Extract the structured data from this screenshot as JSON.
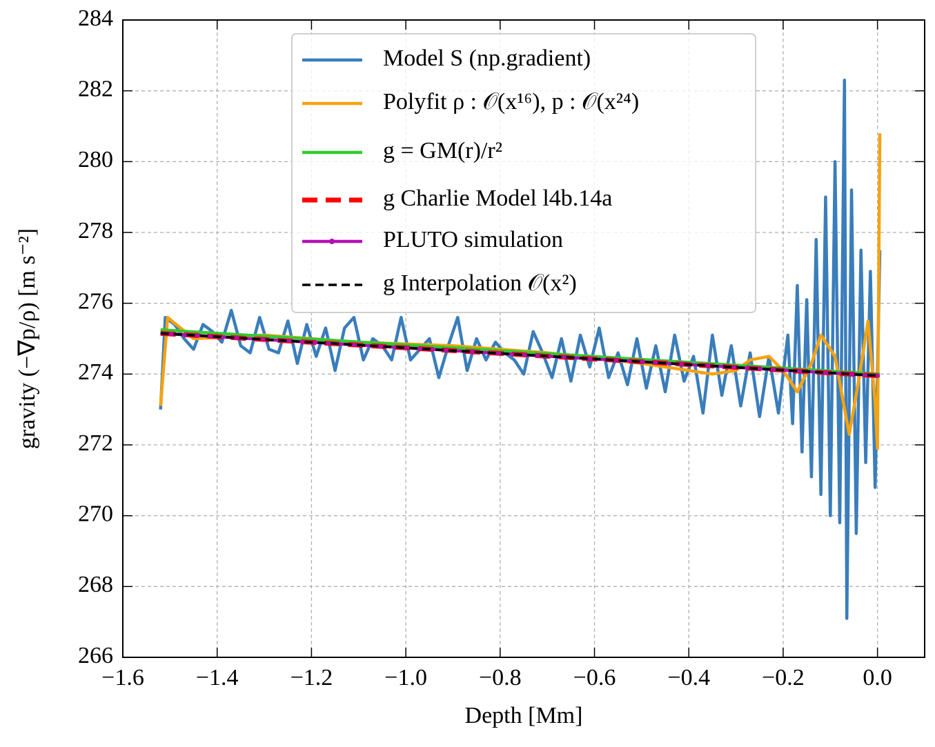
{
  "chart_data": {
    "type": "line",
    "xlabel": "Depth [Mm]",
    "ylabel": "gravity (−∇p/ρ) [m s⁻²]",
    "xlim": [
      -1.6,
      0.1
    ],
    "ylim": [
      266,
      284
    ],
    "xticks": [
      {
        "value": -1.6,
        "label": "−1.6"
      },
      {
        "value": -1.4,
        "label": "−1.4"
      },
      {
        "value": -1.2,
        "label": "−1.2"
      },
      {
        "value": -1.0,
        "label": "−1.0"
      },
      {
        "value": -0.8,
        "label": "−0.8"
      },
      {
        "value": -0.6,
        "label": "−0.6"
      },
      {
        "value": -0.4,
        "label": "−0.4"
      },
      {
        "value": -0.2,
        "label": "−0.2"
      },
      {
        "value": 0.0,
        "label": "0.0"
      }
    ],
    "yticks": [
      266,
      268,
      270,
      272,
      274,
      276,
      278,
      280,
      282,
      284
    ],
    "grid": true,
    "legend": "upper center",
    "series": [
      {
        "name": "Model S (np.gradient)",
        "color": "#3a7dbb",
        "linestyle": "solid",
        "x": [
          -1.52,
          -1.51,
          -1.49,
          -1.47,
          -1.45,
          -1.43,
          -1.41,
          -1.39,
          -1.37,
          -1.35,
          -1.33,
          -1.31,
          -1.29,
          -1.27,
          -1.25,
          -1.23,
          -1.21,
          -1.19,
          -1.17,
          -1.15,
          -1.13,
          -1.11,
          -1.09,
          -1.07,
          -1.05,
          -1.03,
          -1.01,
          -0.99,
          -0.97,
          -0.95,
          -0.93,
          -0.91,
          -0.89,
          -0.87,
          -0.85,
          -0.83,
          -0.81,
          -0.79,
          -0.77,
          -0.75,
          -0.73,
          -0.71,
          -0.69,
          -0.67,
          -0.65,
          -0.63,
          -0.61,
          -0.59,
          -0.57,
          -0.55,
          -0.53,
          -0.51,
          -0.49,
          -0.47,
          -0.45,
          -0.43,
          -0.41,
          -0.39,
          -0.37,
          -0.35,
          -0.33,
          -0.31,
          -0.29,
          -0.27,
          -0.25,
          -0.23,
          -0.21,
          -0.19,
          -0.18,
          -0.17,
          -0.16,
          -0.15,
          -0.14,
          -0.13,
          -0.12,
          -0.11,
          -0.1,
          -0.09,
          -0.08,
          -0.07,
          -0.065,
          -0.055,
          -0.045,
          -0.035,
          -0.025,
          -0.015,
          -0.005,
          0.0,
          0.005
        ],
        "values": [
          273.0,
          275.6,
          275.4,
          275.0,
          274.7,
          275.4,
          275.2,
          274.9,
          275.8,
          274.8,
          274.6,
          275.6,
          274.7,
          274.6,
          275.5,
          274.3,
          275.4,
          274.5,
          275.3,
          274.1,
          275.3,
          275.6,
          274.4,
          275.0,
          274.8,
          274.4,
          275.6,
          274.4,
          274.7,
          275.0,
          273.9,
          274.8,
          275.6,
          274.1,
          275.0,
          274.4,
          274.9,
          274.6,
          274.4,
          274.0,
          275.2,
          274.6,
          273.9,
          275.0,
          273.8,
          275.1,
          274.2,
          275.3,
          273.9,
          274.6,
          273.7,
          275.0,
          273.6,
          274.8,
          273.5,
          275.1,
          273.8,
          274.5,
          272.9,
          275.1,
          273.4,
          274.8,
          273.1,
          274.6,
          272.8,
          274.5,
          272.9,
          275.1,
          272.6,
          276.5,
          271.8,
          276.1,
          271.1,
          277.8,
          270.6,
          279.0,
          270.0,
          280.0,
          269.8,
          282.3,
          267.1,
          279.2,
          269.5,
          277.5,
          271.5,
          276.9,
          270.8,
          274.0,
          277.5
        ]
      },
      {
        "name": "Polyfit ρ : 𝒪(x¹⁶), p : 𝒪(x²⁴)",
        "color": "#f5a30f",
        "linestyle": "solid",
        "x": [
          -1.52,
          -1.505,
          -1.45,
          -1.3,
          -1.1,
          -0.9,
          -0.7,
          -0.5,
          -0.35,
          -0.3,
          -0.27,
          -0.23,
          -0.2,
          -0.17,
          -0.14,
          -0.12,
          -0.09,
          -0.06,
          -0.04,
          -0.02,
          -0.005,
          0.0,
          0.005
        ],
        "values": [
          273.1,
          275.6,
          275.0,
          275.1,
          274.9,
          274.8,
          274.6,
          274.3,
          274.0,
          274.1,
          274.4,
          274.5,
          274.1,
          273.5,
          274.3,
          275.1,
          274.5,
          272.3,
          273.8,
          275.5,
          273.2,
          271.9,
          280.8
        ]
      },
      {
        "name": "g = GM(r)/r²",
        "color": "#2ecc2e",
        "linestyle": "solid",
        "x": [
          -1.52,
          0.005
        ],
        "values": [
          275.25,
          274.0
        ]
      },
      {
        "name": "g Charlie Model l4b.14a",
        "color": "#ff0000",
        "linestyle": "dashed",
        "x": [
          -1.52,
          0.005
        ],
        "values": [
          275.15,
          273.95
        ]
      },
      {
        "name": "PLUTO simulation",
        "color": "#b40fb4",
        "linestyle": "solid",
        "marker": "dot",
        "x": [
          -1.52,
          0.005
        ],
        "values": [
          275.15,
          273.95
        ]
      },
      {
        "name": "g Interpolation 𝒪(x²)",
        "color": "#000000",
        "linestyle": "dashed",
        "x": [
          -1.52,
          0.005
        ],
        "values": [
          275.15,
          273.95
        ]
      }
    ]
  }
}
